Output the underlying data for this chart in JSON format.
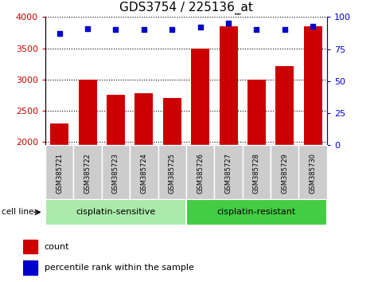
{
  "title": "GDS3754 / 225136_at",
  "samples": [
    "GSM385721",
    "GSM385722",
    "GSM385723",
    "GSM385724",
    "GSM385725",
    "GSM385726",
    "GSM385727",
    "GSM385728",
    "GSM385729",
    "GSM385730"
  ],
  "counts": [
    2300,
    3000,
    2750,
    2780,
    2700,
    3500,
    3850,
    3000,
    3220,
    3850
  ],
  "percentile_ranks": [
    87,
    91,
    90,
    90,
    90,
    92,
    95,
    90,
    90,
    93
  ],
  "bar_color": "#cc0000",
  "dot_color": "#0000cc",
  "ylim_left": [
    1950,
    4000
  ],
  "ylim_right": [
    0,
    100
  ],
  "yticks_left": [
    2000,
    2500,
    3000,
    3500,
    4000
  ],
  "yticks_right": [
    0,
    25,
    50,
    75,
    100
  ],
  "groups": [
    {
      "label": "cisplatin-sensitive",
      "start": 0,
      "end": 5,
      "color": "#aaeaaa"
    },
    {
      "label": "cisplatin-resistant",
      "start": 5,
      "end": 10,
      "color": "#44cc44"
    }
  ],
  "group_label": "cell line",
  "legend_count_label": "count",
  "legend_percentile_label": "percentile rank within the sample",
  "title_fontsize": 11,
  "axis_label_color_left": "#cc0000",
  "axis_label_color_right": "#0000cc",
  "grid_color": "#000000",
  "tick_area_bg": "#cccccc",
  "bg_color": "#ffffff"
}
